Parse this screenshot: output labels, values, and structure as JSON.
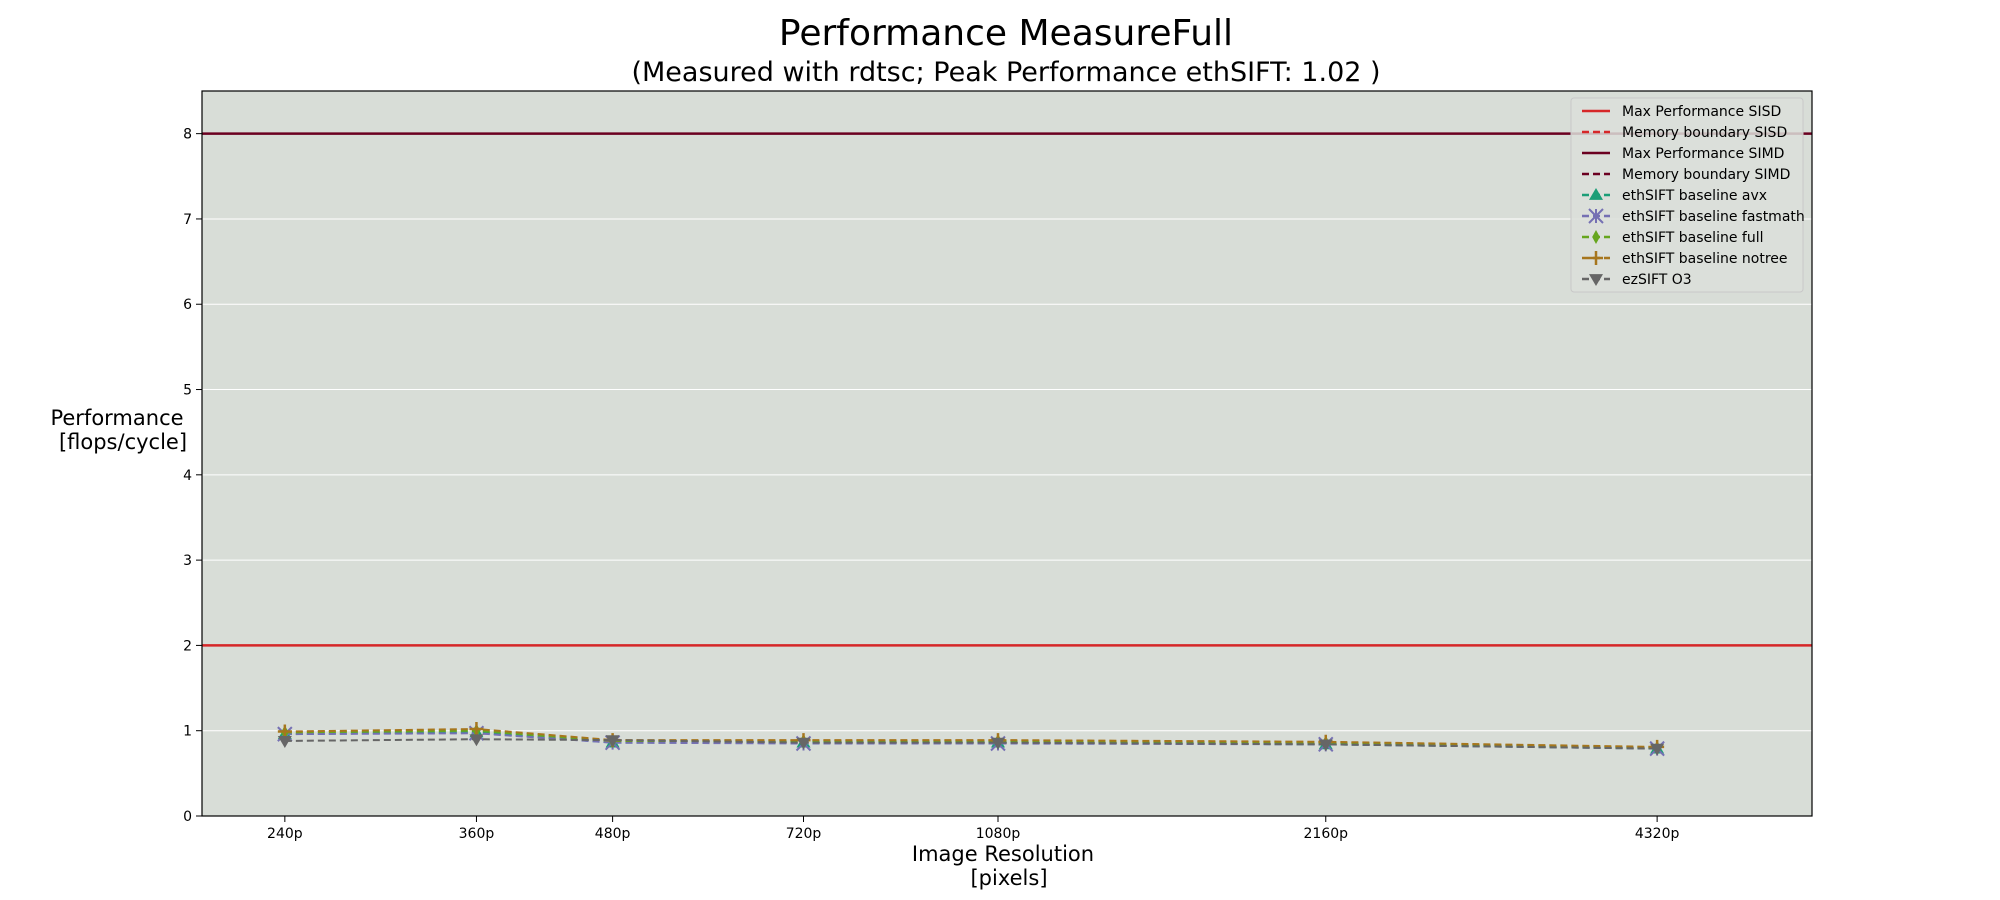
{
  "chart_data": {
    "type": "line",
    "title": "Performance MeasureFull",
    "subtitle": "(Measured with rdtsc; Peak Performance ethSIFT: 1.02 )",
    "xlabel_line1": "Image Resolution",
    "xlabel_line2": "[pixels]",
    "ylabel_line1": "Performance",
    "ylabel_line2": "[flops/cycle]",
    "ylim": [
      0,
      8.5
    ],
    "xlim": [
      130,
      4600
    ],
    "yticks": [
      0,
      1,
      2,
      3,
      4,
      5,
      6,
      7,
      8
    ],
    "yticklabels": [
      "0",
      "1",
      "2",
      "3",
      "4",
      "5",
      "6",
      "7",
      "8"
    ],
    "categories": [
      "240p",
      "360p",
      "480p",
      "720p",
      "1080p",
      "2160p",
      "4320p"
    ],
    "x": [
      360,
      892,
      1270,
      1800,
      2340,
      3250,
      4170
    ],
    "reference_lines": [
      {
        "name": "Max Performance SISD",
        "value": 2,
        "color": "#d62728",
        "style": "solid"
      },
      {
        "name": "Memory boundary SISD",
        "value": null,
        "color": "#d62728",
        "style": "dashed"
      },
      {
        "name": "Max Performance SIMD",
        "value": 8,
        "color": "#6b0020",
        "style": "solid"
      },
      {
        "name": "Memory boundary SIMD",
        "value": null,
        "color": "#6b0020",
        "style": "dashed"
      }
    ],
    "series": [
      {
        "name": "ethSIFT baseline avx",
        "color": "#1b9e77",
        "marker": "triangle-up",
        "values": [
          0.96,
          0.98,
          0.86,
          0.86,
          0.86,
          0.84,
          0.79
        ]
      },
      {
        "name": "ethSIFT baseline fastmath",
        "color": "#7570b3",
        "marker": "x-star",
        "values": [
          0.96,
          0.97,
          0.86,
          0.85,
          0.85,
          0.84,
          0.79
        ]
      },
      {
        "name": "ethSIFT baseline full",
        "color": "#66a61e",
        "marker": "diamond",
        "values": [
          0.98,
          1.0,
          0.88,
          0.88,
          0.88,
          0.86,
          0.8
        ]
      },
      {
        "name": "ethSIFT baseline notree",
        "color": "#a6761d",
        "marker": "plus",
        "values": [
          0.99,
          1.02,
          0.89,
          0.89,
          0.89,
          0.87,
          0.81
        ]
      },
      {
        "name": "ezSIFT O3",
        "color": "#666666",
        "marker": "triangle-down",
        "values": [
          0.88,
          0.9,
          0.89,
          0.86,
          0.86,
          0.84,
          0.79
        ]
      }
    ],
    "legend_position": "top-right",
    "grid": "horizontal"
  },
  "colors": {
    "plot_background": "#d8ddd7",
    "grid": "#ffffff"
  }
}
